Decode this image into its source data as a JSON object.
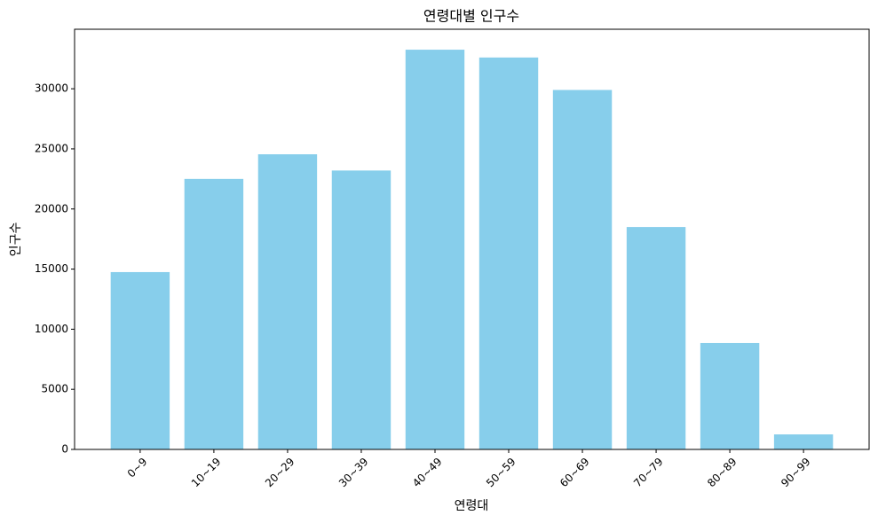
{
  "chart_data": {
    "type": "bar",
    "title": "연령대별 인구수",
    "x_label": "연령대",
    "y_label": "인구수",
    "categories": [
      "0~9",
      "10~19",
      "20~29",
      "30~39",
      "40~49",
      "50~59",
      "60~69",
      "70~79",
      "80~89",
      "90~99"
    ],
    "values": [
      14750,
      22500,
      24550,
      23200,
      33250,
      32600,
      29900,
      18500,
      8850,
      1250
    ],
    "color": "#87ceeb",
    "ylim": [
      0,
      34950
    ],
    "yticks": [
      0,
      5000,
      10000,
      15000,
      20000,
      25000,
      30000
    ],
    "grid": false
  }
}
